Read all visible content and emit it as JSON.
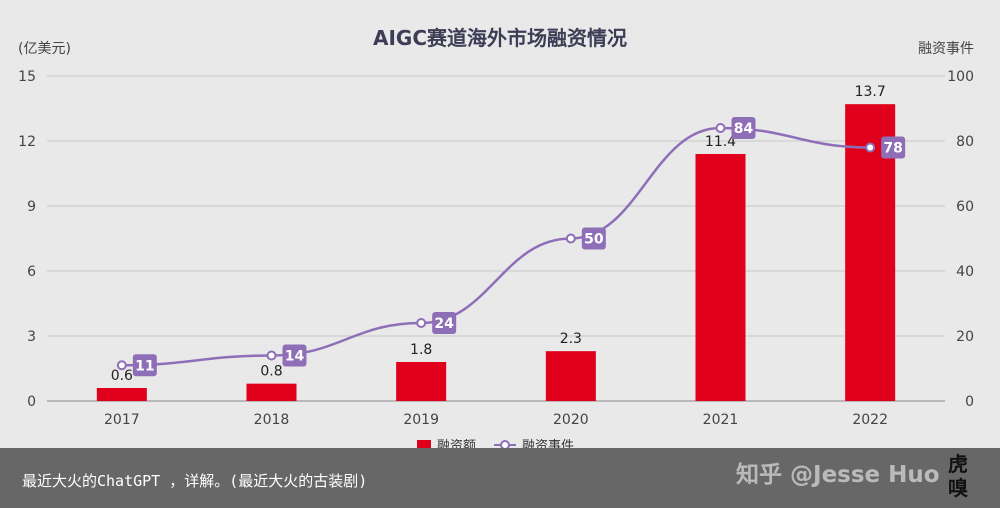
{
  "chart_data": {
    "type": "bar+line",
    "title": "AIGC赛道海外市场融资情况",
    "left_axis_unit": "(亿美元)",
    "right_axis_unit": "融资事件",
    "categories": [
      "2017",
      "2018",
      "2019",
      "2020",
      "2021",
      "2022"
    ],
    "left_ticks": [
      "0",
      "3",
      "6",
      "9",
      "12",
      "15"
    ],
    "right_ticks": [
      "0",
      "20",
      "40",
      "60",
      "80",
      "100"
    ],
    "ylim_left": [
      0,
      15
    ],
    "ylim_right": [
      0,
      100
    ],
    "series": [
      {
        "name": "融资额",
        "kind": "bar",
        "axis": "left",
        "color": "#e0001b",
        "values": [
          0.6,
          0.8,
          1.8,
          2.3,
          11.4,
          13.7
        ],
        "labels": [
          "0.6",
          "0.8",
          "1.8",
          "2.3",
          "11.4",
          "13.7"
        ]
      },
      {
        "name": "融资事件",
        "kind": "line",
        "axis": "right",
        "color": "#8e6fb7",
        "values": [
          11,
          14,
          24,
          50,
          84,
          78
        ],
        "labels": [
          "11",
          "14",
          "24",
          "50",
          "84",
          "78"
        ]
      }
    ],
    "legend_position": "bottom-center",
    "grid": true
  },
  "caption": "最近大火的ChatGPT ，详解。(最近大火的古装剧)",
  "watermark": "知乎 @Jesse Huo",
  "logo_text": "虎嗅"
}
